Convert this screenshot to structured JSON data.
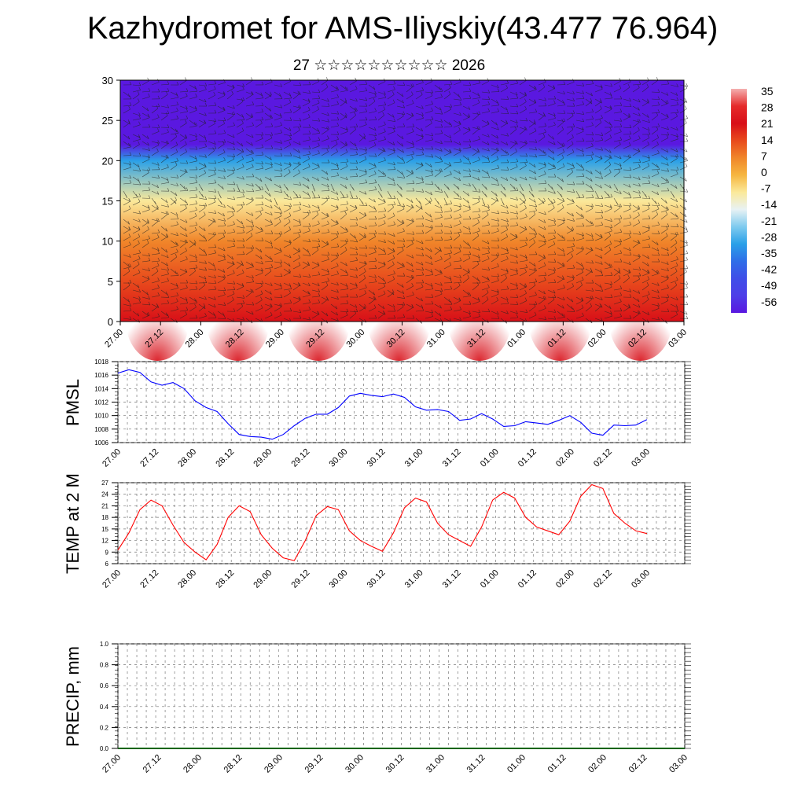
{
  "title": "Kazhydromet for AMS-Iliyskiy(43.477 76.964)",
  "subtitle": "27 ☆☆☆☆☆☆☆☆☆☆ 2026",
  "time_labels": [
    "27.00",
    "27.12",
    "28.00",
    "28.12",
    "29.00",
    "29.12",
    "30.00",
    "30.12",
    "31.00",
    "31.12",
    "01.00",
    "01.12",
    "02.00",
    "02.12",
    "03.00"
  ],
  "chart_data": [
    {
      "type": "heatmap",
      "name": "vertical-temperature-cross-section",
      "title": "",
      "xlabel": "",
      "ylabel": "",
      "ylim": [
        0,
        30
      ],
      "y_ticks": [
        "0",
        "5",
        "10",
        "15",
        "20",
        "25",
        "30"
      ],
      "categories": [
        "27.00",
        "27.12",
        "28.00",
        "28.12",
        "29.00",
        "29.12",
        "30.00",
        "30.12",
        "31.00",
        "31.12",
        "01.00",
        "01.12",
        "02.00",
        "02.12",
        "03.00"
      ],
      "colorbar_labels": [
        "35",
        "28",
        "21",
        "14",
        "7",
        "0",
        "-7",
        "-14",
        "-21",
        "-28",
        "-35",
        "-42",
        "-49",
        "-56"
      ],
      "profile_levels": [
        0,
        5,
        10,
        15,
        20,
        22,
        25,
        30
      ],
      "profile_temps": [
        24,
        16,
        8,
        -6,
        -32,
        -56,
        -58,
        -56
      ],
      "colors": {
        "hot": "#d80f18",
        "warm": "#f0862a",
        "neutral": "#fbe99a",
        "cold": "#2aa0e8",
        "coldest": "#4d18e6"
      },
      "overlay": "wind barbs"
    },
    {
      "type": "line",
      "name": "pmsl",
      "ylabel": "PMSL",
      "ylim": [
        1006,
        1018
      ],
      "y_ticks": [
        "1006",
        "1008",
        "1010",
        "1012",
        "1014",
        "1016",
        "1018"
      ],
      "color": "#0000ff",
      "x": [
        0,
        3,
        6,
        9,
        12,
        15,
        18,
        21,
        24,
        27,
        30,
        33,
        36,
        39,
        42,
        45,
        48,
        51,
        54,
        57,
        60,
        63,
        66,
        69,
        72,
        75,
        78,
        81,
        84,
        87,
        90,
        93,
        96,
        99,
        102,
        105,
        108,
        111,
        114,
        117,
        120,
        123,
        126,
        129,
        132,
        135,
        138,
        141,
        144
      ],
      "values": [
        1016.3,
        1016.8,
        1016.4,
        1015.0,
        1014.5,
        1014.9,
        1014.0,
        1012.2,
        1011.2,
        1010.6,
        1008.8,
        1007.2,
        1006.9,
        1006.8,
        1006.5,
        1007.2,
        1008.5,
        1009.6,
        1010.2,
        1010.2,
        1011.2,
        1012.9,
        1013.3,
        1013.0,
        1012.8,
        1013.2,
        1012.7,
        1011.3,
        1010.8,
        1010.9,
        1010.6,
        1009.3,
        1009.5,
        1010.3,
        1009.5,
        1008.4,
        1008.5,
        1009.1,
        1008.9,
        1008.7,
        1009.3,
        1010.0,
        1009.0,
        1007.4,
        1007.1,
        1008.6,
        1008.5,
        1008.6,
        1009.4
      ]
    },
    {
      "type": "line",
      "name": "temp-2m",
      "ylabel": "TEMP at 2 M",
      "ylim": [
        6,
        27
      ],
      "y_ticks": [
        "6",
        "9",
        "12",
        "15",
        "18",
        "21",
        "24",
        "27"
      ],
      "color": "#ff0000",
      "x": [
        0,
        3,
        6,
        9,
        12,
        15,
        18,
        21,
        24,
        27,
        30,
        33,
        36,
        39,
        42,
        45,
        48,
        51,
        54,
        57,
        60,
        63,
        66,
        69,
        72,
        75,
        78,
        81,
        84,
        87,
        90,
        93,
        96,
        99,
        102,
        105,
        108,
        111,
        114,
        117,
        120,
        123,
        126,
        129,
        132,
        135,
        138,
        141,
        144
      ],
      "values": [
        9.5,
        14,
        20,
        22.5,
        21,
        16,
        11.5,
        9,
        7,
        11,
        18,
        21,
        19.5,
        13.5,
        10,
        7.5,
        6.8,
        12,
        18.5,
        20.8,
        20,
        14.5,
        12,
        10.5,
        9.2,
        14,
        20.5,
        23,
        22,
        16.5,
        13.5,
        12,
        10.5,
        15.5,
        22.5,
        24.5,
        23,
        18,
        15.5,
        14.5,
        13.5,
        17,
        23.5,
        26.5,
        25.5,
        19,
        16.5,
        14.5,
        13.8
      ]
    },
    {
      "type": "line",
      "name": "precip",
      "ylabel": "PRECIP, mm",
      "ylim": [
        0,
        1.0
      ],
      "y_ticks": [
        "0.0",
        "0.2",
        "0.4",
        "0.6",
        "0.8",
        "1.0"
      ],
      "color": "#006400",
      "x": [
        0,
        144
      ],
      "values": [
        0,
        0
      ]
    }
  ]
}
